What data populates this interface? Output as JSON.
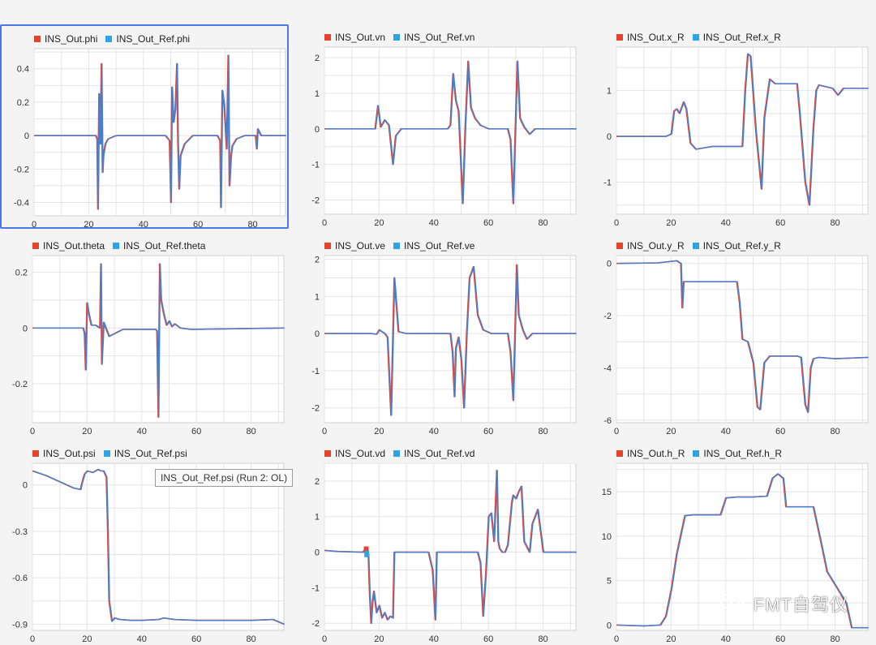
{
  "colors": {
    "out": "#e8412c",
    "ref": "#2ea3e8",
    "ref_line": "#4a7fcf",
    "grid": "#e4e4e4",
    "frame": "#cfcfcf",
    "selected": "#4a78e6"
  },
  "tooltip": {
    "text": "INS_Out_Ref.psi (Run 2: OL)"
  },
  "watermark": {
    "text": "FMT自驾仪",
    "icon": "wechat-icon"
  },
  "chart_data": [
    {
      "type": "line",
      "id": "phi",
      "legend": [
        "INS_Out.phi",
        "INS_Out_Ref.phi"
      ],
      "selected": true,
      "xlim": [
        0,
        92
      ],
      "ylim": [
        -0.48,
        0.52
      ],
      "xticks": [
        0,
        20,
        40,
        60,
        80
      ],
      "yticks": [
        -0.4,
        -0.2,
        0,
        0.2,
        0.4
      ],
      "ytick_labels": [
        "-0.4",
        "-0.2",
        "0",
        "0.2",
        "0.4"
      ],
      "x": [
        0,
        22.5,
        23,
        23.3,
        23.7,
        24.2,
        24.6,
        25,
        25.3,
        26,
        27,
        30,
        48,
        49.5,
        50,
        50.4,
        51,
        51.6,
        52.2,
        52.6,
        53,
        53.5,
        55,
        58,
        67,
        68,
        68.3,
        68.8,
        69.5,
        70.4,
        71,
        71.4,
        72,
        72.5,
        74,
        77,
        81,
        81.4,
        81.8,
        83,
        92
      ],
      "y": [
        0,
        0,
        -0.02,
        -0.44,
        0.25,
        -0.05,
        0.43,
        -0.22,
        -0.12,
        -0.05,
        -0.02,
        0,
        0,
        -0.03,
        -0.4,
        0.29,
        0.08,
        0.16,
        0.43,
        -0.05,
        -0.32,
        -0.12,
        -0.05,
        0,
        0,
        -0.03,
        -0.43,
        0.27,
        0.18,
        -0.08,
        0.48,
        -0.3,
        -0.12,
        -0.06,
        -0.02,
        0,
        0,
        -0.08,
        0.04,
        0,
        0
      ]
    },
    {
      "type": "line",
      "id": "vn",
      "legend": [
        "INS_Out.vn",
        "INS_Out_Ref.vn"
      ],
      "xlim": [
        0,
        92
      ],
      "ylim": [
        -2.4,
        2.3
      ],
      "xticks": [
        0,
        20,
        40,
        60,
        80
      ],
      "yticks": [
        -2,
        -1,
        0,
        1,
        2
      ],
      "ytick_labels": [
        "-2",
        "-1",
        "0",
        "1",
        "2"
      ],
      "x": [
        0,
        18.5,
        19.5,
        20.5,
        22,
        23.5,
        25,
        26,
        28,
        45,
        46,
        47,
        48,
        49,
        50.5,
        51.5,
        52.5,
        53.5,
        55,
        57,
        60,
        67,
        68,
        69,
        70.5,
        71.5,
        73,
        75,
        77,
        92
      ],
      "y": [
        0,
        0,
        0.65,
        0.05,
        0.25,
        0.1,
        -1.0,
        -0.2,
        0,
        0,
        0.1,
        1.55,
        0.8,
        0.5,
        -2.1,
        0.1,
        1.9,
        0.6,
        0.3,
        0.1,
        0,
        0,
        -0.3,
        -2.1,
        1.9,
        0.3,
        0.05,
        -0.15,
        0,
        0
      ]
    },
    {
      "type": "line",
      "id": "x_R",
      "legend": [
        "INS_Out.x_R",
        "INS_Out_Ref.x_R"
      ],
      "xlim": [
        0,
        92
      ],
      "ylim": [
        -1.7,
        1.95
      ],
      "xticks": [
        0,
        20,
        40,
        60,
        80
      ],
      "yticks": [
        -1,
        0,
        1
      ],
      "ytick_labels": [
        "-1",
        "0",
        "1"
      ],
      "x": [
        0,
        18,
        20,
        21,
        22,
        23,
        24.5,
        25.5,
        27,
        29,
        35,
        46,
        47,
        48,
        49,
        51,
        53,
        54,
        56,
        58,
        64,
        66,
        67,
        69,
        70.5,
        72,
        73,
        74,
        79,
        81,
        83,
        92
      ],
      "y": [
        0,
        0,
        0.05,
        0.55,
        0.6,
        0.5,
        0.75,
        0.6,
        -0.15,
        -0.28,
        -0.22,
        -0.22,
        1.0,
        1.8,
        1.75,
        0.1,
        -1.15,
        0.4,
        1.25,
        1.15,
        1.15,
        1.15,
        0.5,
        -1.0,
        -1.5,
        0.2,
        1.0,
        1.12,
        1.05,
        0.9,
        1.05,
        1.05
      ]
    },
    {
      "type": "line",
      "id": "theta",
      "legend": [
        "INS_Out.theta",
        "INS_Out_Ref.theta"
      ],
      "xlim": [
        0,
        92
      ],
      "ylim": [
        -0.34,
        0.26
      ],
      "xticks": [
        0,
        20,
        40,
        60,
        80
      ],
      "yticks": [
        -0.2,
        0,
        0.2
      ],
      "ytick_labels": [
        "-0.2",
        "0",
        "0.2"
      ],
      "x": [
        0,
        18.5,
        19,
        19.4,
        19.9,
        20.6,
        21.5,
        23,
        24.6,
        25,
        25.3,
        26,
        28,
        33,
        45,
        45.5,
        46,
        46.5,
        47,
        48,
        49,
        50,
        51,
        52,
        54,
        58,
        92
      ],
      "y": [
        0,
        0,
        -0.02,
        -0.15,
        0.09,
        0.05,
        0.01,
        0.01,
        0.0,
        0.23,
        -0.13,
        0.02,
        -0.03,
        -0.005,
        -0.005,
        -0.01,
        -0.32,
        0.23,
        0.1,
        0.05,
        0.01,
        0.025,
        0.005,
        0.015,
        0.0,
        -0.005,
        0
      ]
    },
    {
      "type": "line",
      "id": "ve",
      "legend": [
        "INS_Out.ve",
        "INS_Out_Ref.ve"
      ],
      "xlim": [
        0,
        92
      ],
      "ylim": [
        -2.4,
        2.1
      ],
      "xticks": [
        0,
        20,
        40,
        60,
        80
      ],
      "yticks": [
        -2,
        -1,
        0,
        1,
        2
      ],
      "ytick_labels": [
        "-2",
        "-1",
        "0",
        "1",
        "2"
      ],
      "x": [
        0,
        17,
        19,
        20,
        22,
        23,
        24.3,
        25.5,
        27,
        30,
        46,
        46.8,
        47.5,
        48,
        49,
        50,
        51,
        52,
        53,
        54.5,
        56,
        58,
        61,
        67,
        68,
        69,
        70.3,
        71,
        72.5,
        74,
        76,
        92
      ],
      "y": [
        0,
        0,
        -0.02,
        0.1,
        0,
        -0.1,
        -2.2,
        1.5,
        0.05,
        0,
        0,
        -0.5,
        -1.7,
        -0.4,
        -0.1,
        -0.7,
        -2.0,
        0.0,
        1.5,
        1.8,
        0.5,
        0.1,
        0,
        0,
        -0.5,
        -1.8,
        1.85,
        0.5,
        0.1,
        -0.15,
        0,
        0
      ]
    },
    {
      "type": "line",
      "id": "y_R",
      "legend": [
        "INS_Out.y_R",
        "INS_Out_Ref.y_R"
      ],
      "xlim": [
        0,
        92
      ],
      "ylim": [
        -6.1,
        0.3
      ],
      "xticks": [
        0,
        20,
        40,
        60,
        80
      ],
      "yticks": [
        -6,
        -4,
        -2,
        0
      ],
      "ytick_labels": [
        "-6",
        "-4",
        "-2",
        "0"
      ],
      "x": [
        0,
        15,
        22,
        23.5,
        24,
        24.5,
        25.5,
        28,
        35,
        44,
        45,
        46,
        48,
        50,
        51.5,
        52.5,
        54,
        56,
        64,
        66,
        67.5,
        69,
        70,
        71,
        72,
        74,
        80,
        92
      ],
      "y": [
        0,
        0.02,
        0.1,
        0,
        -1.7,
        -0.7,
        -0.7,
        -0.7,
        -0.7,
        -0.7,
        -1.5,
        -2.9,
        -3.0,
        -3.8,
        -5.5,
        -5.6,
        -3.8,
        -3.55,
        -3.55,
        -3.55,
        -3.6,
        -5.4,
        -5.7,
        -4.0,
        -3.65,
        -3.6,
        -3.65,
        -3.6
      ]
    },
    {
      "type": "line",
      "id": "psi",
      "legend": [
        "INS_Out.psi",
        "INS_Out_Ref.psi"
      ],
      "xlim": [
        0,
        92
      ],
      "ylim": [
        -0.94,
        0.14
      ],
      "xticks": [
        0,
        20,
        40,
        60,
        80
      ],
      "yticks": [
        -0.9,
        -0.6,
        -0.3,
        0
      ],
      "ytick_labels": [
        "-0.9",
        "-0.6",
        "-0.3",
        "0"
      ],
      "x": [
        0,
        5,
        10,
        15,
        17.5,
        18,
        19,
        20,
        22,
        24,
        25,
        26,
        27,
        27.5,
        28,
        29,
        30,
        32,
        36,
        40,
        46,
        48,
        52,
        60,
        70,
        80,
        88,
        92
      ],
      "y": [
        0.09,
        0.06,
        0.02,
        -0.02,
        -0.03,
        0.01,
        0.07,
        0.09,
        0.08,
        0.1,
        0.09,
        0.09,
        0.05,
        -0.3,
        -0.75,
        -0.88,
        -0.86,
        -0.87,
        -0.875,
        -0.875,
        -0.87,
        -0.86,
        -0.87,
        -0.875,
        -0.875,
        -0.875,
        -0.87,
        -0.9
      ]
    },
    {
      "type": "line",
      "id": "vd",
      "legend": [
        "INS_Out.vd",
        "INS_Out_Ref.vd"
      ],
      "xlim": [
        0,
        92
      ],
      "ylim": [
        -2.2,
        2.5
      ],
      "xticks": [
        0,
        20,
        40,
        60,
        80
      ],
      "yticks": [
        -2,
        -1,
        0,
        1,
        2
      ],
      "ytick_labels": [
        "-2",
        "-1",
        "0",
        "1",
        "2"
      ],
      "x": [
        0,
        5,
        14,
        15,
        16,
        16.5,
        17,
        17.5,
        18,
        19,
        20,
        21,
        22,
        23,
        24,
        25,
        25.5,
        26,
        30,
        38,
        39.5,
        40.5,
        41,
        41.5,
        45,
        56,
        57,
        58,
        59,
        59.5,
        60,
        61,
        62,
        63,
        63.5,
        64,
        65,
        66,
        67,
        68.5,
        69,
        70,
        71,
        72,
        73,
        75,
        76,
        77,
        78,
        80,
        92
      ],
      "y": [
        0.05,
        0.02,
        0.0,
        0.1,
        -0.05,
        -1.2,
        -2.0,
        -1.4,
        -1.1,
        -1.7,
        -1.5,
        -1.85,
        -1.7,
        -1.9,
        -1.8,
        -1.85,
        0.0,
        0.0,
        0.0,
        0.0,
        -0.5,
        -1.9,
        0.0,
        0.0,
        0.0,
        0.0,
        -0.3,
        -1.8,
        -0.6,
        0.2,
        1.0,
        1.1,
        0.3,
        2.3,
        0.3,
        0.1,
        0.0,
        0.0,
        0.2,
        1.4,
        1.6,
        1.5,
        1.7,
        1.85,
        0.3,
        0.0,
        0.8,
        1.0,
        1.2,
        0.0,
        0.0
      ]
    },
    {
      "type": "line",
      "id": "h_R",
      "legend": [
        "INS_Out.h_R",
        "INS_Out_Ref.h_R"
      ],
      "xlim": [
        0,
        92
      ],
      "ylim": [
        -0.6,
        18.2
      ],
      "xticks": [
        0,
        20,
        40,
        60,
        80
      ],
      "yticks": [
        0,
        5,
        10,
        15
      ],
      "ytick_labels": [
        "0",
        "5",
        "10",
        "15"
      ],
      "x": [
        0,
        10,
        16,
        18,
        20,
        22,
        25,
        28,
        32,
        38,
        40,
        44,
        50,
        55,
        57,
        59,
        61,
        62,
        68,
        72,
        75,
        77,
        80,
        84,
        86,
        88,
        92
      ],
      "y": [
        0,
        -0.1,
        0,
        1,
        4,
        8,
        12.3,
        12.4,
        12.4,
        12.4,
        14.3,
        14.4,
        14.4,
        14.5,
        16.5,
        17,
        16.5,
        13.3,
        13.3,
        13.3,
        9,
        6,
        4.5,
        2.5,
        -0.3,
        -0.3,
        -0.3
      ]
    }
  ]
}
